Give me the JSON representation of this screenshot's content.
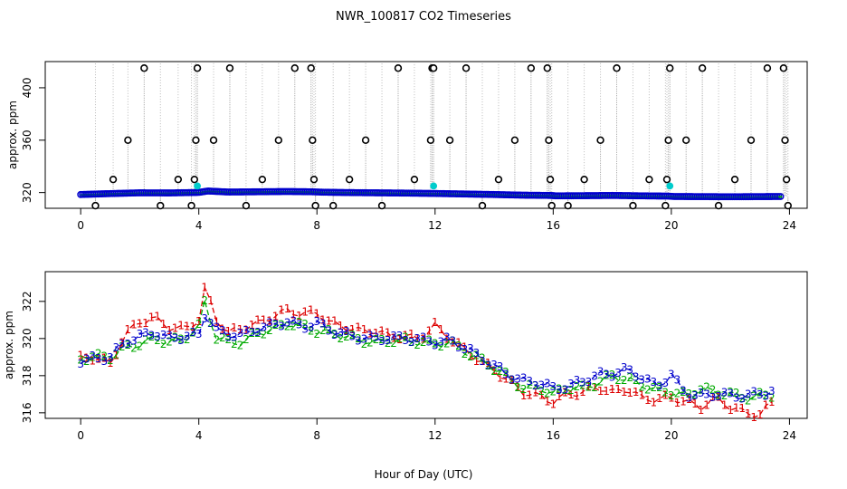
{
  "title": "NWR_100817  CO2 Timeseries",
  "xlabel": "Hour of Day (UTC)",
  "colors": {
    "series1": "#dd0000",
    "series2": "#00aa00",
    "series3": "#0000cc",
    "highlight": "#00cccc",
    "drop": "#999999"
  },
  "chart_data": [
    {
      "type": "scatter",
      "panel": "top",
      "ylabel": "approx. ppm",
      "xlim": [
        -1.2,
        24.6
      ],
      "ylim": [
        308,
        420
      ],
      "xticks": [
        "0",
        "4",
        "8",
        "12",
        "16",
        "20",
        "24"
      ],
      "xtick_values": [
        0,
        4,
        8,
        12,
        16,
        20,
        24
      ],
      "yticks": [
        "320",
        "360",
        "400"
      ],
      "ytick_values": [
        320,
        360,
        400
      ],
      "baseline": {
        "x": [
          0,
          1,
          2,
          3,
          4,
          4.3,
          5,
          6,
          7,
          7.8,
          8.2,
          9,
          10,
          11,
          12,
          13,
          14,
          15,
          15.9,
          16.1,
          17,
          18,
          19,
          19.9,
          20.1,
          21,
          22,
          23,
          23.7
        ],
        "ppm": [
          318.5,
          319.2,
          319.8,
          319.7,
          320.1,
          321.2,
          320.4,
          320.6,
          320.8,
          320.6,
          320.3,
          320.0,
          319.8,
          319.6,
          319.3,
          318.9,
          318.5,
          318.0,
          317.8,
          317.5,
          317.6,
          317.8,
          317.5,
          317.3,
          317.0,
          316.9,
          316.8,
          316.9,
          317.0
        ]
      },
      "spikes": {
        "x": [
          0.5,
          1.1,
          1.6,
          2.15,
          2.7,
          3.3,
          3.75,
          3.85,
          3.9,
          3.95,
          4.5,
          5.05,
          5.6,
          6.15,
          6.7,
          7.25,
          7.8,
          7.85,
          7.9,
          7.95,
          8.55,
          9.1,
          9.65,
          10.2,
          10.75,
          11.3,
          11.85,
          11.9,
          11.95,
          12.5,
          13.05,
          13.6,
          14.15,
          14.7,
          15.25,
          15.8,
          15.85,
          15.9,
          15.95,
          16.5,
          17.05,
          17.6,
          18.15,
          18.7,
          19.25,
          19.8,
          19.85,
          19.9,
          19.95,
          20.5,
          21.05,
          21.6,
          22.15,
          22.7,
          23.25,
          23.8,
          23.85,
          23.9,
          23.95
        ],
        "ppm": [
          310,
          330,
          360,
          415,
          310,
          330,
          310,
          330,
          360,
          415,
          360,
          415,
          310,
          330,
          360,
          415,
          415,
          360,
          330,
          310,
          310,
          330,
          360,
          310,
          415,
          330,
          360,
          415,
          415,
          360,
          415,
          310,
          330,
          360,
          415,
          415,
          360,
          330,
          310,
          310,
          330,
          360,
          415,
          310,
          330,
          310,
          330,
          360,
          415,
          360,
          415,
          310,
          330,
          360,
          415,
          415,
          360,
          330,
          310
        ]
      },
      "highlights": {
        "x": [
          3.95,
          11.95,
          19.95
        ],
        "ppm": [
          325,
          325,
          325
        ]
      }
    },
    {
      "type": "line",
      "panel": "bottom",
      "ylabel": "approx. ppm",
      "xlim": [
        -1.2,
        24.6
      ],
      "ylim": [
        315.7,
        323.6
      ],
      "xticks": [
        "0",
        "4",
        "8",
        "12",
        "16",
        "20",
        "24"
      ],
      "xtick_values": [
        0,
        4,
        8,
        12,
        16,
        20,
        24
      ],
      "yticks": [
        "316",
        "318",
        "320",
        "322"
      ],
      "ytick_values": [
        316,
        318,
        320,
        322
      ],
      "series": [
        {
          "name": "1",
          "marker": "1",
          "x": [
            0.0,
            0.5,
            1.0,
            1.5,
            2.0,
            2.5,
            3.0,
            3.5,
            4.0,
            4.25,
            4.5,
            5.0,
            5.5,
            6.0,
            6.5,
            7.0,
            7.5,
            8.0,
            8.5,
            9.0,
            9.5,
            10.0,
            10.5,
            11.0,
            11.5,
            12.0,
            12.5,
            13.0,
            13.5,
            14.0,
            14.5,
            15.0,
            15.5,
            16.0,
            16.5,
            17.0,
            17.5,
            18.0,
            18.5,
            19.0,
            19.5,
            20.0,
            20.5,
            21.0,
            21.5,
            22.0,
            22.5,
            23.0,
            23.5
          ],
          "values": [
            318.9,
            319.0,
            318.6,
            320.2,
            320.9,
            321.1,
            320.6,
            320.5,
            321.0,
            323.0,
            321.2,
            320.3,
            320.6,
            320.8,
            321.2,
            321.5,
            321.3,
            321.4,
            320.8,
            320.6,
            320.4,
            320.4,
            320.1,
            320.1,
            320.0,
            320.7,
            320.0,
            319.4,
            318.8,
            318.3,
            317.7,
            317.1,
            316.9,
            316.6,
            317.0,
            317.1,
            317.4,
            317.1,
            317.3,
            316.8,
            316.7,
            316.8,
            316.6,
            316.3,
            316.8,
            316.3,
            316.0,
            315.9,
            316.7
          ]
        },
        {
          "name": "2",
          "marker": "2",
          "x": [
            0.0,
            0.5,
            1.0,
            1.5,
            2.0,
            2.5,
            3.0,
            3.5,
            4.0,
            4.25,
            4.5,
            5.0,
            5.5,
            6.0,
            6.5,
            7.0,
            7.5,
            8.0,
            8.5,
            9.0,
            9.5,
            10.0,
            10.5,
            11.0,
            11.5,
            12.0,
            12.5,
            13.0,
            13.5,
            14.0,
            14.5,
            15.0,
            15.5,
            16.0,
            16.5,
            17.0,
            17.5,
            18.0,
            18.5,
            19.0,
            19.5,
            20.0,
            20.5,
            21.0,
            21.5,
            22.0,
            22.5,
            23.0,
            23.5
          ],
          "values": [
            318.9,
            319.0,
            319.0,
            319.5,
            319.7,
            320.0,
            319.8,
            320.0,
            320.6,
            322.3,
            320.1,
            319.8,
            319.8,
            320.3,
            320.5,
            320.8,
            320.7,
            320.4,
            320.3,
            320.1,
            319.9,
            319.8,
            319.9,
            319.9,
            319.8,
            319.7,
            319.8,
            319.3,
            318.9,
            318.4,
            317.9,
            317.3,
            317.4,
            317.0,
            317.4,
            317.3,
            317.6,
            318.0,
            317.8,
            317.5,
            317.2,
            317.1,
            316.9,
            317.3,
            317.1,
            317.0,
            316.8,
            316.9,
            317.0
          ]
        },
        {
          "name": "3",
          "marker": "3",
          "x": [
            0.0,
            0.5,
            1.0,
            1.5,
            2.0,
            2.5,
            3.0,
            3.5,
            4.0,
            4.25,
            4.5,
            5.0,
            5.5,
            6.0,
            6.5,
            7.0,
            7.5,
            8.0,
            8.5,
            9.0,
            9.5,
            10.0,
            10.5,
            11.0,
            11.5,
            12.0,
            12.5,
            13.0,
            13.5,
            14.0,
            14.5,
            15.0,
            15.5,
            16.0,
            16.5,
            17.0,
            17.5,
            18.0,
            18.5,
            19.0,
            19.5,
            20.0,
            20.5,
            21.0,
            21.5,
            22.0,
            22.5,
            23.0,
            23.5
          ],
          "values": [
            318.8,
            318.9,
            319.0,
            319.8,
            320.1,
            320.3,
            320.0,
            320.1,
            320.2,
            321.5,
            320.5,
            320.2,
            320.2,
            320.5,
            320.7,
            320.9,
            320.6,
            320.8,
            320.4,
            320.2,
            320.0,
            320.0,
            320.0,
            320.0,
            319.9,
            319.8,
            319.9,
            319.5,
            319.0,
            318.5,
            318.0,
            317.7,
            317.6,
            317.3,
            317.4,
            317.7,
            318.0,
            318.1,
            318.3,
            317.9,
            317.4,
            318.0,
            317.0,
            316.9,
            317.0,
            316.9,
            316.9,
            317.0,
            317.2
          ]
        }
      ]
    }
  ]
}
